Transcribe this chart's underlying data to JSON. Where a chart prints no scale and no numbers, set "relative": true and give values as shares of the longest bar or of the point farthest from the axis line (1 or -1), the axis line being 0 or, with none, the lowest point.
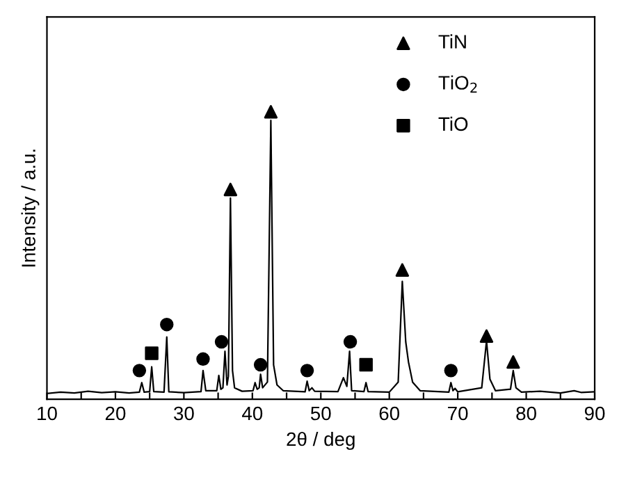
{
  "chart_data": {
    "type": "line",
    "relative": true,
    "xlabel": "2θ / deg",
    "ylabel": "Intensity / a.u.",
    "xlim": [
      10,
      90
    ],
    "xticks": [
      10,
      {
        "value": 15,
        "label": null
      },
      20,
      {
        "value": 25,
        "label": null
      },
      30,
      {
        "value": 35,
        "label": null
      },
      40,
      {
        "value": 45,
        "label": null
      },
      50,
      {
        "value": 55,
        "label": null
      },
      60,
      {
        "value": 65,
        "label": null
      },
      70,
      {
        "value": 75,
        "label": null
      },
      80,
      {
        "value": 85,
        "label": null
      },
      90
    ],
    "grid": false,
    "legend": "top right",
    "tick_labels": "x",
    "series": [
      {
        "color": "#000000",
        "marker": "none",
        "x": [
          10,
          12,
          14,
          16,
          18,
          20,
          22,
          23.5,
          23.85,
          24.2,
          25,
          25.3,
          25.6,
          27.1,
          27.5,
          27.8,
          30,
          32.5,
          32.8,
          33.2,
          34.8,
          35.1,
          35.4,
          35.7,
          36.0,
          36.3,
          36.5,
          36.8,
          37.1,
          37.4,
          38.5,
          40.1,
          40.4,
          40.7,
          41.0,
          41.2,
          41.5,
          42.2,
          42.7,
          43.1,
          43.6,
          44.5,
          47.7,
          48.0,
          48.3,
          48.7,
          49.1,
          52.5,
          53.3,
          53.8,
          54.2,
          54.5,
          56.3,
          56.6,
          56.9,
          60,
          61.3,
          61.9,
          62.4,
          62.8,
          63.4,
          64.5,
          68.7,
          69.0,
          69.3,
          69.6,
          70,
          73.5,
          74.2,
          74.7,
          75.5,
          77.7,
          78.1,
          78.5,
          79.3,
          82,
          85,
          87,
          88,
          90
        ],
        "values": [
          0.02,
          0.025,
          0.022,
          0.028,
          0.023,
          0.026,
          0.022,
          0.025,
          0.058,
          0.025,
          0.027,
          0.113,
          0.027,
          0.025,
          0.217,
          0.026,
          0.023,
          0.027,
          0.1,
          0.03,
          0.03,
          0.083,
          0.035,
          0.04,
          0.167,
          0.05,
          0.08,
          0.7,
          0.1,
          0.04,
          0.028,
          0.03,
          0.058,
          0.035,
          0.04,
          0.087,
          0.04,
          0.06,
          0.97,
          0.12,
          0.05,
          0.03,
          0.026,
          0.063,
          0.03,
          0.04,
          0.028,
          0.027,
          0.075,
          0.045,
          0.167,
          0.03,
          0.027,
          0.058,
          0.027,
          0.025,
          0.06,
          0.41,
          0.2,
          0.13,
          0.06,
          0.03,
          0.025,
          0.058,
          0.03,
          0.038,
          0.026,
          0.04,
          0.203,
          0.07,
          0.03,
          0.035,
          0.1,
          0.04,
          0.025,
          0.028,
          0.022,
          0.03,
          0.024,
          0.026
        ]
      },
      {
        "type": "scatter",
        "name": "TiN",
        "color": "#000000",
        "marker": "triangle",
        "x": [
          36.8,
          42.7,
          61.9,
          74.2,
          78.1
        ],
        "values": [
          0.73,
          1.0,
          0.45,
          0.22,
          0.13
        ]
      },
      {
        "type": "scatter",
        "name": "TiO$_{2}$",
        "color": "#000000",
        "marker": "circle",
        "x": [
          23.5,
          27.5,
          32.8,
          35.5,
          41.2,
          48.0,
          54.3,
          69.0
        ],
        "values": [
          0.1,
          0.26,
          0.14,
          0.2,
          0.12,
          0.1,
          0.2,
          0.1
        ]
      },
      {
        "type": "scatter",
        "name": "TiO",
        "color": "#000000",
        "marker": "square",
        "x": [
          25.3,
          56.6
        ],
        "values": [
          0.16,
          0.12
        ]
      }
    ]
  }
}
